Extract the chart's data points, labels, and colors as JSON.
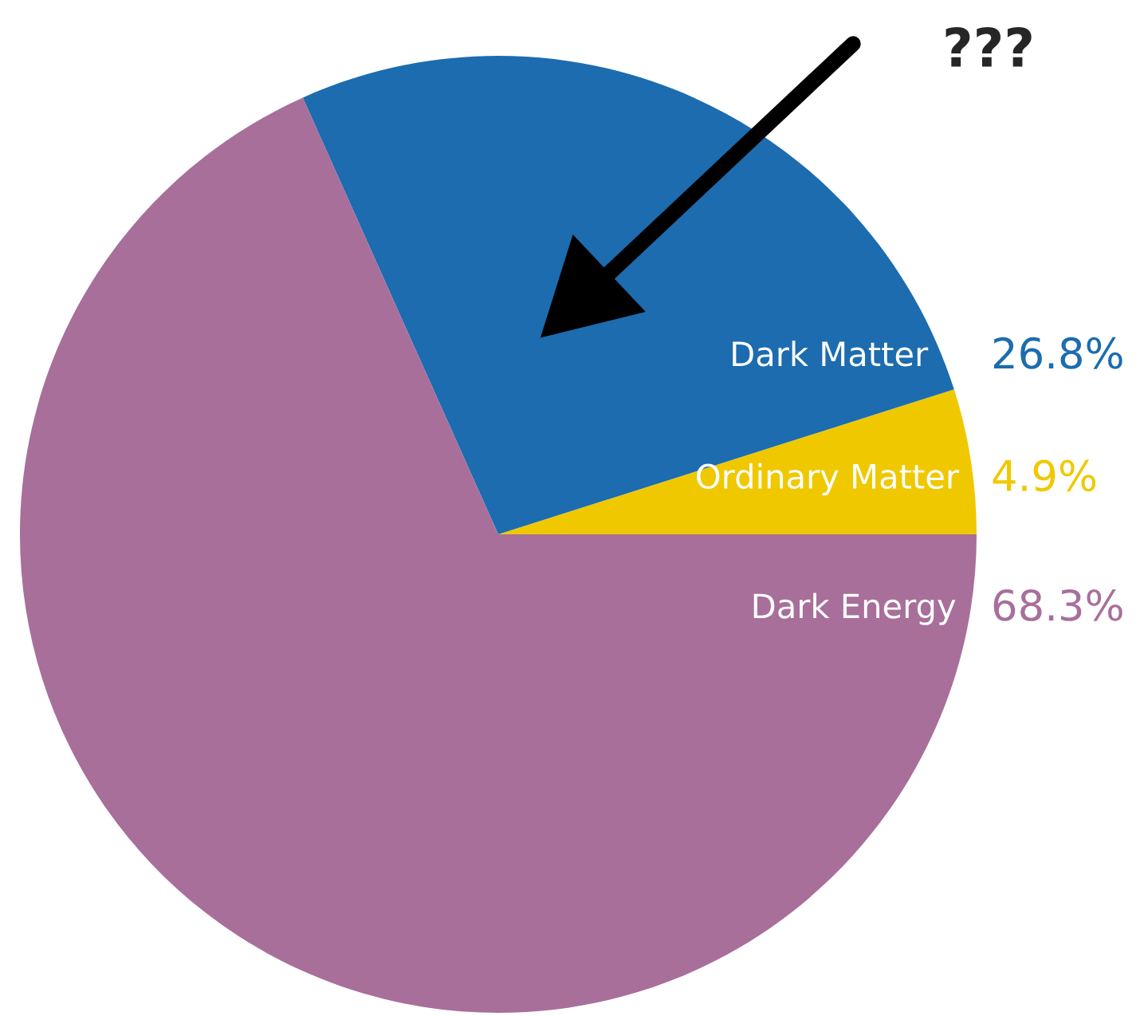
{
  "chart_data": {
    "type": "pie",
    "categories": [
      "Ordinary Matter",
      "Dark Matter",
      "Dark Energy"
    ],
    "values": [
      4.9,
      26.8,
      68.3
    ],
    "colors": [
      "#f0c800",
      "#1c6caf",
      "#a86f9b"
    ],
    "value_labels": [
      "4.9%",
      "26.8%",
      "68.3%"
    ],
    "annotations": [
      "???"
    ]
  }
}
